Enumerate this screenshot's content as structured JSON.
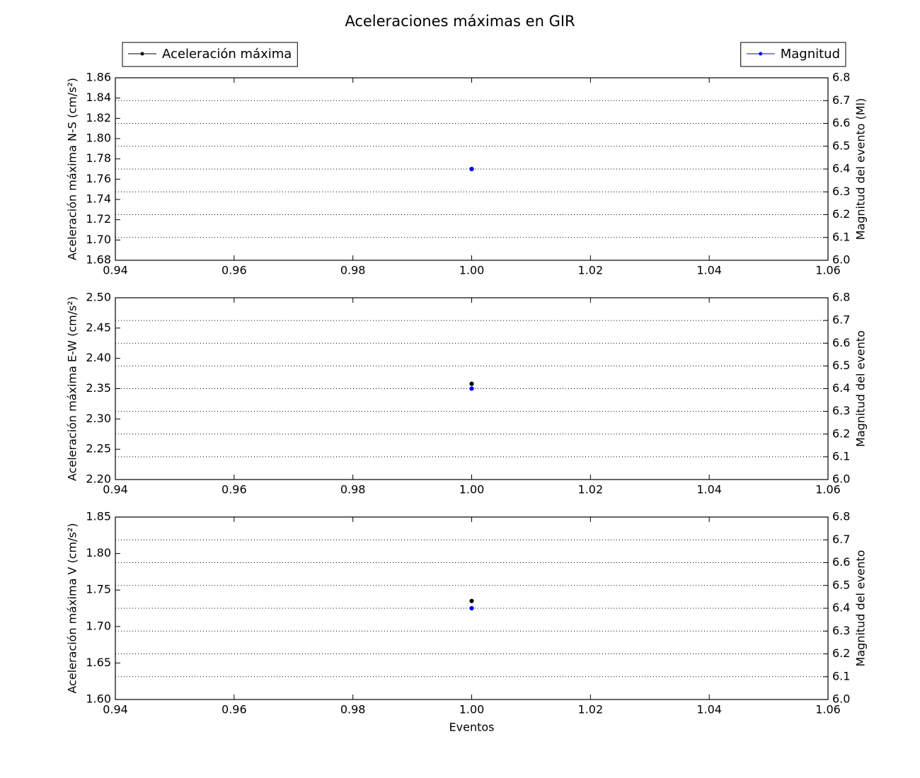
{
  "chart_data": [
    {
      "type": "scatter",
      "title": "Aceleraciones máximas en GIR",
      "x": [
        1
      ],
      "xlim": [
        0.94,
        1.06
      ],
      "xticks": [
        0.94,
        0.96,
        0.98,
        {
          "value": 1,
          "label": "1.00"
        },
        1.02,
        1.04,
        1.06
      ],
      "ylabel": "Aceleración máxima N-S (cm/s²)",
      "y2label": "Magnitud del evento (Ml)",
      "ylim": [
        1.68,
        1.86
      ],
      "yticks": [
        1.68,
        {
          "value": 1.7,
          "label": "1.70"
        },
        1.72,
        1.74,
        1.76,
        1.78,
        {
          "value": 1.8,
          "label": "1.80"
        },
        1.82,
        1.84,
        1.86
      ],
      "y2lim": [
        6,
        6.8
      ],
      "y2ticks": [
        {
          "value": 6,
          "label": "6.0"
        },
        6.1,
        6.2,
        6.3,
        6.4,
        6.5,
        6.6,
        6.7,
        6.8
      ],
      "grid": "y2",
      "series": [
        {
          "name": "Aceleración máxima",
          "color": "#000000",
          "values": [
            1.77
          ],
          "legend": "upper left"
        },
        {
          "name": "Magnitud",
          "color": "#0000ff",
          "values": [
            6.4
          ],
          "axis": "y2",
          "legend": "upper right"
        }
      ]
    },
    {
      "type": "scatter",
      "x": [
        1
      ],
      "xlim": [
        0.94,
        1.06
      ],
      "xticks": [
        0.94,
        0.96,
        0.98,
        {
          "value": 1,
          "label": "1.00"
        },
        1.02,
        1.04,
        1.06
      ],
      "ylabel": "Aceleración máxima E-W (cm/s²)",
      "y2label": "Magnitud del evento",
      "ylim": [
        2.2,
        2.5
      ],
      "yticks": [
        {
          "value": 2.2,
          "label": "2.20"
        },
        2.25,
        {
          "value": 2.3,
          "label": "2.30"
        },
        2.35,
        {
          "value": 2.4,
          "label": "2.40"
        },
        2.45,
        {
          "value": 2.5,
          "label": "2.50"
        }
      ],
      "y2lim": [
        6,
        6.8
      ],
      "y2ticks": [
        {
          "value": 6,
          "label": "6.0"
        },
        6.1,
        6.2,
        6.3,
        6.4,
        6.5,
        6.6,
        6.7,
        6.8
      ],
      "grid": "y2",
      "series": [
        {
          "color": "#000000",
          "values": [
            2.358
          ]
        },
        {
          "color": "#0000ff",
          "values": [
            6.4
          ],
          "axis": "y2"
        }
      ]
    },
    {
      "type": "scatter",
      "x": [
        1
      ],
      "xlim": [
        0.94,
        1.06
      ],
      "xticks": [
        0.94,
        0.96,
        0.98,
        {
          "value": 1,
          "label": "1.00"
        },
        1.02,
        1.04,
        1.06
      ],
      "xlabel": "Eventos",
      "ylabel": "Aceleración máxima V (cm/s²)",
      "y2label": "Magnitud del evento",
      "ylim": [
        1.6,
        1.85
      ],
      "yticks": [
        {
          "value": 1.6,
          "label": "1.60"
        },
        1.65,
        {
          "value": 1.7,
          "label": "1.70"
        },
        1.75,
        {
          "value": 1.8,
          "label": "1.80"
        },
        1.85
      ],
      "y2lim": [
        6,
        6.8
      ],
      "y2ticks": [
        {
          "value": 6,
          "label": "6.0"
        },
        6.1,
        6.2,
        6.3,
        6.4,
        6.5,
        6.6,
        6.7,
        6.8
      ],
      "grid": "y2",
      "series": [
        {
          "color": "#000000",
          "values": [
            1.735
          ]
        },
        {
          "color": "#0000ff",
          "values": [
            6.4
          ],
          "axis": "y2"
        }
      ]
    }
  ]
}
